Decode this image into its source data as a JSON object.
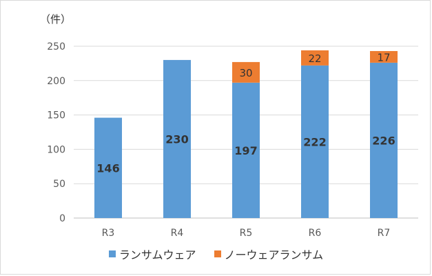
{
  "chart_data": {
    "type": "bar",
    "stacked": true,
    "unit_label": "（件）",
    "categories": [
      "R3",
      "R4",
      "R5",
      "R6",
      "R7"
    ],
    "ylim": [
      0,
      250
    ],
    "yticks": [
      0,
      50,
      100,
      150,
      200,
      250
    ],
    "grid": true,
    "legend_position": "bottom",
    "series": [
      {
        "name": "ランサムウェア",
        "values": [
          146,
          230,
          197,
          222,
          226
        ],
        "color": "#5b9bd5",
        "labels": [
          "146",
          "230",
          "197",
          "222",
          "226"
        ]
      },
      {
        "name": "ノーウェアランサム",
        "values": [
          0,
          0,
          30,
          22,
          17
        ],
        "color": "#ed7d31",
        "labels": [
          "",
          "",
          "30",
          "22",
          "17"
        ]
      }
    ]
  }
}
